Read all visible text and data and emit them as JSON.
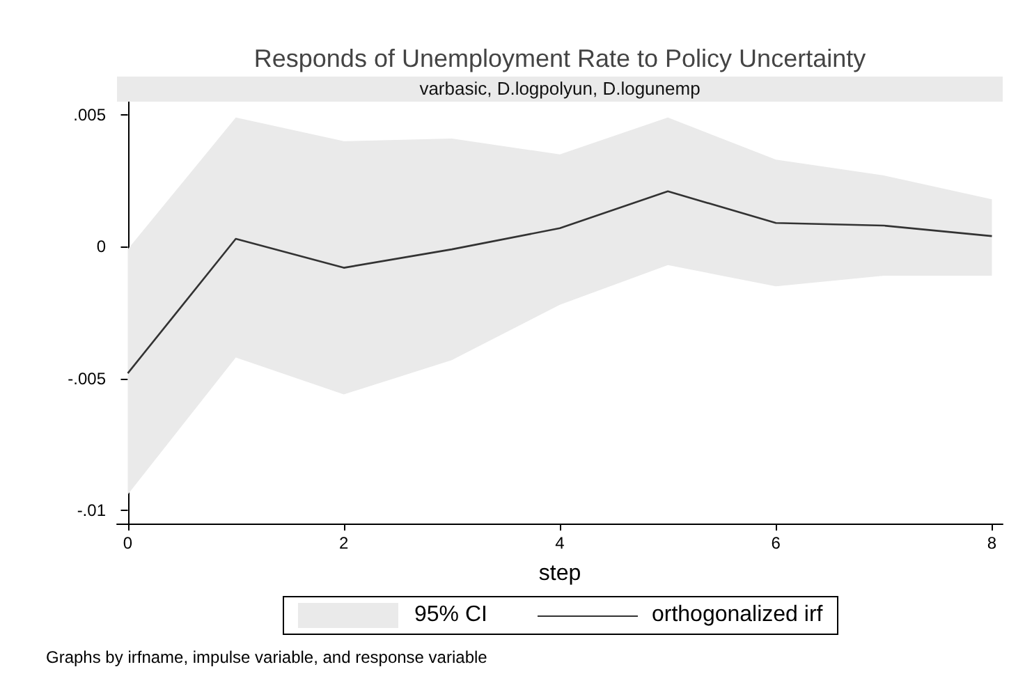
{
  "chart_data": {
    "type": "line",
    "title": "Responds of Unemployment Rate to Policy Uncertainty",
    "subtitle": "varbasic, D.logpolyun, D.logunemp",
    "xlabel": "step",
    "x": [
      0,
      1,
      2,
      3,
      4,
      5,
      6,
      7,
      8
    ],
    "series": [
      {
        "name": "orthogonalized irf",
        "type": "line",
        "color": "#333333",
        "values": [
          -0.0048,
          0.0003,
          -0.0008,
          -0.0001,
          0.0007,
          0.0021,
          0.0009,
          0.0008,
          0.0004
        ],
        "lower": [
          -0.0094,
          -0.0042,
          -0.0056,
          -0.0043,
          -0.0022,
          -0.0007,
          -0.0015,
          -0.0011,
          -0.0011
        ],
        "upper": [
          -0.0001,
          0.0049,
          0.004,
          0.0041,
          0.0035,
          0.0049,
          0.0033,
          0.0027,
          0.0018
        ]
      }
    ],
    "xlim": [
      -0.1,
      8.1
    ],
    "xticks": [
      0,
      2,
      4,
      6,
      8
    ],
    "ylim": [
      -0.0105,
      0.0055
    ],
    "yticks": [
      {
        "value": -0.01,
        "label": "-.01"
      },
      {
        "value": -0.005,
        "label": "-.005"
      },
      0,
      {
        "value": 0.005,
        "label": ".005"
      }
    ],
    "grid": false,
    "legend": "bottom",
    "marker": "none",
    "line_style": "solid",
    "annotations": [
      "95% CI",
      "Graphs by irfname, impulse variable, and response variable"
    ]
  }
}
